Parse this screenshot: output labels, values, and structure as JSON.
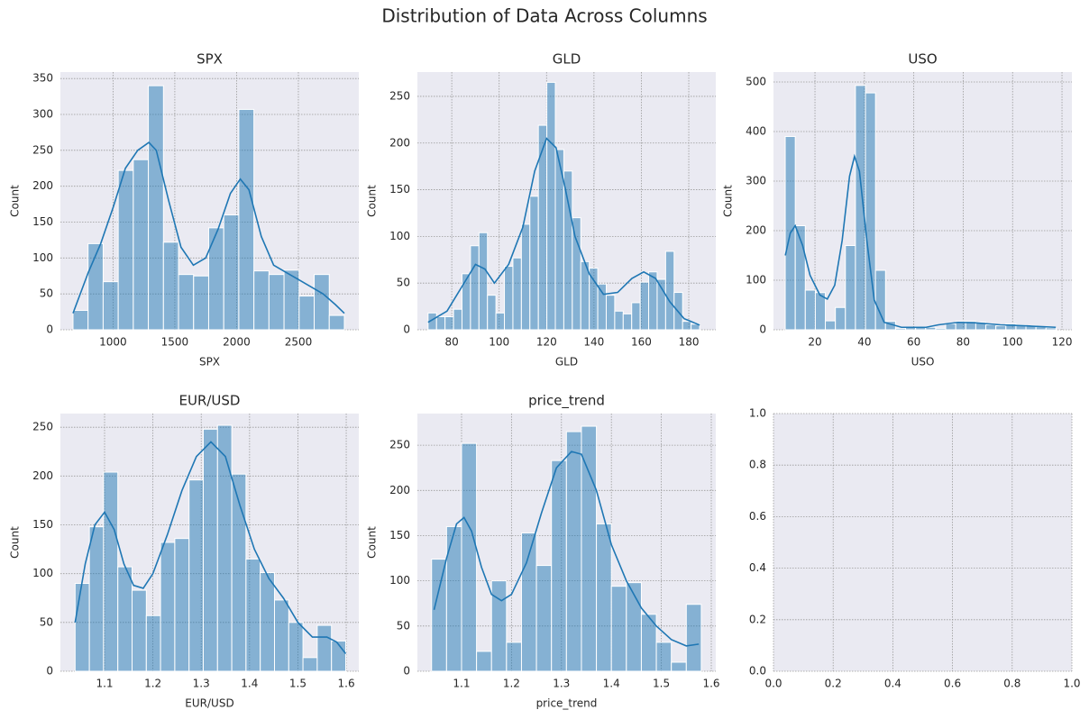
{
  "title": "Distribution of Data Across Columns",
  "chart_data": [
    {
      "type": "histogram",
      "title": "SPX",
      "x_label": "SPX",
      "y_label": "Count",
      "color": "#1f77b4",
      "grid": true,
      "bins": [
        676,
        798,
        920,
        1042,
        1164,
        1286,
        1408,
        1530,
        1652,
        1774,
        1896,
        2018,
        2140,
        2262,
        2384,
        2506,
        2628,
        2750,
        2872
      ],
      "values": [
        27,
        120,
        67,
        222,
        237,
        340,
        122,
        77,
        75,
        142,
        160,
        307,
        82,
        77,
        83,
        47,
        77,
        20
      ],
      "kde": {
        "x": [
          676,
          800,
          900,
          1000,
          1100,
          1200,
          1290,
          1350,
          1450,
          1550,
          1650,
          1750,
          1850,
          1950,
          2030,
          2100,
          2200,
          2300,
          2400,
          2500,
          2600,
          2700,
          2800,
          2872
        ],
        "values": [
          23,
          80,
          120,
          170,
          225,
          250,
          261,
          250,
          180,
          115,
          90,
          100,
          140,
          190,
          210,
          195,
          130,
          90,
          80,
          70,
          60,
          50,
          35,
          23
        ]
      },
      "xlim": [
        574,
        2989
      ],
      "ylim": [
        0,
        359
      ],
      "xticks": [
        1000,
        1500,
        2000,
        2500
      ],
      "yticks": [
        0,
        50,
        100,
        150,
        200,
        250,
        300,
        350
      ]
    },
    {
      "type": "histogram",
      "title": "GLD",
      "x_label": "GLD",
      "y_label": "Count",
      "color": "#1f77b4",
      "grid": true,
      "bins": [
        70,
        73.58,
        77.16,
        80.74,
        84.32,
        87.9,
        91.48,
        95.06,
        98.64,
        102.22,
        105.8,
        109.38,
        112.96,
        116.54,
        120.12,
        123.7,
        127.28,
        130.86,
        134.44,
        138.02,
        141.6,
        145.18,
        148.76,
        152.34,
        155.92,
        159.5,
        163.08,
        166.66,
        170.24,
        173.82,
        177.4,
        180.98,
        184.56
      ],
      "values": [
        18,
        14,
        14,
        22,
        60,
        90,
        104,
        37,
        18,
        68,
        77,
        113,
        143,
        219,
        265,
        193,
        170,
        120,
        73,
        66,
        49,
        37,
        20,
        17,
        29,
        51,
        62,
        54,
        84,
        40,
        9,
        6
      ],
      "kde": {
        "x": [
          70,
          78,
          84,
          90,
          94,
          98,
          104,
          110,
          115,
          120,
          124,
          128,
          132,
          138,
          144,
          150,
          156,
          161,
          166,
          172,
          178,
          184.6
        ],
        "values": [
          8,
          20,
          45,
          70,
          65,
          50,
          70,
          110,
          170,
          205,
          195,
          150,
          100,
          60,
          38,
          40,
          55,
          62,
          55,
          30,
          12,
          5
        ]
      },
      "xlim": [
        65.5,
        191.4
      ],
      "ylim": [
        0,
        276
      ],
      "xticks": [
        80,
        100,
        120,
        140,
        160,
        180
      ],
      "yticks": [
        0,
        50,
        100,
        150,
        200,
        250
      ]
    },
    {
      "type": "histogram",
      "title": "USO",
      "x_label": "USO",
      "y_label": "Count",
      "color": "#1f77b4",
      "grid": true,
      "bins": [
        7.96,
        12.02,
        16.08,
        20.14,
        24.2,
        28.26,
        32.32,
        36.38,
        40.44,
        44.5,
        48.56,
        52.62,
        56.68,
        60.74,
        64.8,
        68.86,
        72.92,
        76.98,
        81.04,
        85.1,
        89.16,
        93.22,
        97.28,
        101.34,
        105.4,
        109.46,
        113.52,
        117.58
      ],
      "values": [
        390,
        210,
        80,
        75,
        18,
        45,
        170,
        493,
        478,
        120,
        17,
        3,
        5,
        6,
        5,
        3,
        12,
        17,
        17,
        15,
        10,
        8,
        12,
        10,
        8,
        6,
        4
      ],
      "kde": {
        "x": [
          8,
          10,
          12,
          15,
          18,
          22,
          25,
          28,
          31,
          34,
          36,
          38,
          41,
          44,
          48,
          55,
          65,
          70,
          78,
          85,
          95,
          105,
          117.5
        ],
        "values": [
          150,
          195,
          210,
          170,
          110,
          70,
          62,
          90,
          180,
          310,
          350,
          320,
          180,
          60,
          15,
          5,
          5,
          10,
          15,
          14,
          10,
          8,
          5
        ]
      },
      "xlim": [
        3.2,
        124
      ],
      "ylim": [
        0,
        520
      ],
      "xticks": [
        20,
        40,
        60,
        80,
        100,
        120
      ],
      "yticks": [
        0,
        100,
        200,
        300,
        400,
        500
      ]
    },
    {
      "type": "histogram",
      "title": "EUR/USD",
      "x_label": "EUR/USD",
      "y_label": "Count",
      "color": "#1f77b4",
      "grid": true,
      "bins": [
        1.039,
        1.0685,
        1.0979,
        1.1274,
        1.1569,
        1.1864,
        1.2158,
        1.2453,
        1.2748,
        1.3042,
        1.3337,
        1.3632,
        1.3926,
        1.4221,
        1.4516,
        1.4811,
        1.5105,
        1.54,
        1.5695,
        1.599
      ],
      "values": [
        90,
        148,
        204,
        107,
        83,
        57,
        132,
        136,
        196,
        248,
        252,
        202,
        115,
        101,
        73,
        50,
        14,
        47,
        31
      ],
      "kde": {
        "x": [
          1.039,
          1.06,
          1.08,
          1.1,
          1.12,
          1.14,
          1.16,
          1.18,
          1.2,
          1.23,
          1.26,
          1.29,
          1.32,
          1.35,
          1.38,
          1.41,
          1.44,
          1.47,
          1.5,
          1.53,
          1.56,
          1.58,
          1.599
        ],
        "values": [
          50,
          110,
          150,
          163,
          145,
          110,
          88,
          85,
          100,
          140,
          185,
          220,
          235,
          220,
          170,
          125,
          95,
          75,
          50,
          35,
          35,
          30,
          18
        ]
      },
      "xlim": [
        1.0086,
        1.626
      ],
      "ylim": [
        0,
        264
      ],
      "xticks": [
        1.1,
        1.2,
        1.3,
        1.4,
        1.5,
        1.6
      ],
      "yticks": [
        0,
        50,
        100,
        150,
        200,
        250
      ]
    },
    {
      "type": "histogram",
      "title": "price_trend",
      "x_label": "price_trend",
      "y_label": "Count",
      "color": "#1f77b4",
      "grid": true,
      "bins": [
        1.04,
        1.07,
        1.1,
        1.13,
        1.16,
        1.19,
        1.22,
        1.25,
        1.28,
        1.31,
        1.34,
        1.37,
        1.4,
        1.43,
        1.46,
        1.49,
        1.52,
        1.55,
        1.58
      ],
      "values": [
        124,
        160,
        252,
        22,
        100,
        32,
        153,
        117,
        233,
        265,
        271,
        163,
        94,
        98,
        63,
        32,
        10,
        74
      ],
      "kde": {
        "x": [
          1.045,
          1.07,
          1.09,
          1.105,
          1.12,
          1.14,
          1.16,
          1.18,
          1.2,
          1.23,
          1.26,
          1.29,
          1.32,
          1.34,
          1.37,
          1.4,
          1.43,
          1.46,
          1.49,
          1.52,
          1.55,
          1.575
        ],
        "values": [
          68,
          125,
          163,
          170,
          155,
          115,
          85,
          78,
          85,
          120,
          175,
          225,
          243,
          240,
          200,
          140,
          100,
          70,
          50,
          35,
          28,
          30
        ]
      },
      "xlim": [
        1.0116,
        1.609
      ],
      "ylim": [
        0,
        285
      ],
      "xticks": [
        1.1,
        1.2,
        1.3,
        1.4,
        1.5,
        1.6
      ],
      "yticks": [
        0,
        50,
        100,
        150,
        200,
        250
      ]
    },
    {
      "type": "empty",
      "grid": true,
      "xlim": [
        0,
        1
      ],
      "ylim": [
        0,
        1
      ],
      "xticks": [
        {
          "value": 0,
          "label": "0.0"
        },
        {
          "value": 0.2,
          "label": "0.2"
        },
        {
          "value": 0.4,
          "label": "0.4"
        },
        {
          "value": 0.6,
          "label": "0.6"
        },
        {
          "value": 0.8,
          "label": "0.8"
        },
        {
          "value": 1,
          "label": "1.0"
        }
      ],
      "yticks": [
        {
          "value": 0,
          "label": "0.0"
        },
        {
          "value": 0.2,
          "label": "0.2"
        },
        {
          "value": 0.4,
          "label": "0.4"
        },
        {
          "value": 0.6,
          "label": "0.6"
        },
        {
          "value": 0.8,
          "label": "0.8"
        },
        {
          "value": 1,
          "label": "1.0"
        }
      ]
    }
  ]
}
